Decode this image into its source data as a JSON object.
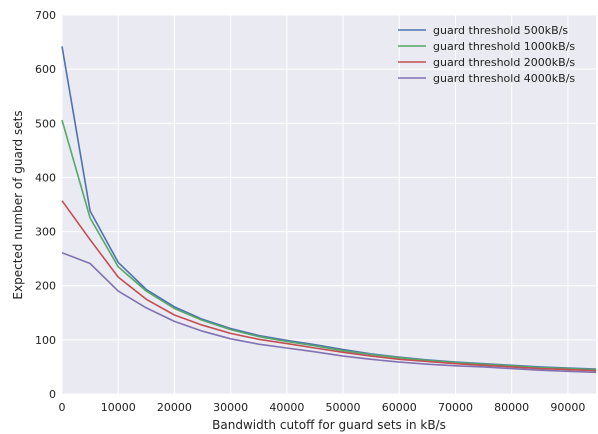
{
  "chart_data": {
    "type": "line",
    "title": "",
    "xlabel": "Bandwidth cutoff for guard sets in kB/s",
    "ylabel": "Expected number of guard sets",
    "xlim": [
      0,
      95000
    ],
    "ylim": [
      0,
      700
    ],
    "x_ticks": [
      0,
      10000,
      20000,
      30000,
      40000,
      50000,
      60000,
      70000,
      80000,
      90000
    ],
    "y_ticks": [
      0,
      100,
      200,
      300,
      400,
      500,
      600,
      700
    ],
    "grid": true,
    "legend_position": "top-right",
    "x": [
      0,
      5000,
      10000,
      15000,
      20000,
      25000,
      30000,
      35000,
      40000,
      45000,
      50000,
      55000,
      60000,
      65000,
      70000,
      75000,
      80000,
      85000,
      90000,
      95000
    ],
    "series": [
      {
        "name": "guard threshold 500kB/s",
        "color": "#4c72b0",
        "values": [
          642,
          338,
          243,
          193,
          161,
          138,
          121,
          108,
          99,
          91,
          82,
          74,
          68,
          63,
          59,
          56,
          53,
          50,
          48,
          46
        ]
      },
      {
        "name": "guard threshold 1000kB/s",
        "color": "#55a868",
        "values": [
          506,
          325,
          235,
          190,
          158,
          136,
          119,
          106,
          97,
          89,
          80,
          73,
          67,
          62,
          58,
          55,
          52,
          49,
          47,
          45
        ]
      },
      {
        "name": "guard threshold 2000kB/s",
        "color": "#c44e52",
        "values": [
          357,
          285,
          216,
          175,
          146,
          127,
          112,
          101,
          93,
          85,
          77,
          70,
          64,
          60,
          56,
          53,
          50,
          47,
          45,
          43
        ]
      },
      {
        "name": "guard threshold 4000kB/s",
        "color": "#8172b2",
        "values": [
          261,
          241,
          190,
          159,
          134,
          116,
          102,
          92,
          85,
          78,
          70,
          64,
          59,
          55,
          52,
          50,
          47,
          44,
          42,
          40
        ]
      }
    ]
  }
}
